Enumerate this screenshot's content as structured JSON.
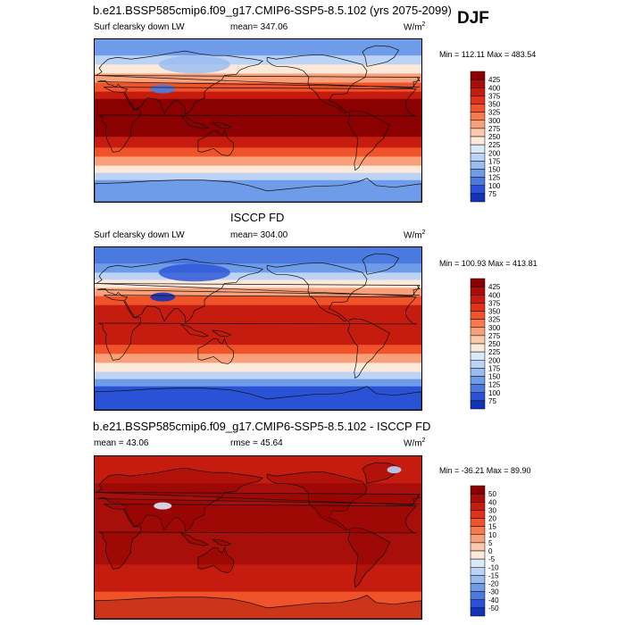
{
  "season": "DJF",
  "panels": [
    {
      "title": "b.e21.BSSP585cmip6.f09_g17.CMIP6-SSP5-8.5.102 (yrs 2075-2099)",
      "left_label": "Surf clearsky down LW",
      "center_label": "mean= 347.06",
      "units": "W/m",
      "units_sup": "2",
      "minmax": "Min = 112.11 Max = 483.54",
      "colorbar_ticks": [
        "425",
        "400",
        "375",
        "350",
        "325",
        "300",
        "275",
        "250",
        "225",
        "200",
        "175",
        "150",
        "125",
        "100",
        "75"
      ],
      "colors": [
        "#8b0000",
        "#a80f0a",
        "#c61c10",
        "#e03217",
        "#f0522a",
        "#f57a50",
        "#f8a07a",
        "#fbc8aa",
        "#fde9d9",
        "#dbe8f8",
        "#bcd3f5",
        "#98bbf0",
        "#6f9ce8",
        "#4a7ae0",
        "#2952d6",
        "#1233b8",
        "#001a8c"
      ],
      "map_type": "absolute"
    },
    {
      "title": "ISCCP FD",
      "left_label": "Surf clearsky down LW",
      "center_label": "mean= 304.00",
      "units": "W/m",
      "units_sup": "2",
      "minmax": "Min = 100.93 Max = 413.81",
      "colorbar_ticks": [
        "425",
        "400",
        "375",
        "350",
        "325",
        "300",
        "275",
        "250",
        "225",
        "200",
        "175",
        "150",
        "125",
        "100",
        "75"
      ],
      "colors": [
        "#8b0000",
        "#a80f0a",
        "#c61c10",
        "#e03217",
        "#f0522a",
        "#f57a50",
        "#f8a07a",
        "#fbc8aa",
        "#fde9d9",
        "#dbe8f8",
        "#bcd3f5",
        "#98bbf0",
        "#6f9ce8",
        "#4a7ae0",
        "#2952d6",
        "#1233b8",
        "#001a8c"
      ],
      "map_type": "absolute"
    },
    {
      "title": "b.e21.BSSP585cmip6.f09_g17.CMIP6-SSP5-8.5.102 - ISCCP FD",
      "left_label": "mean =  43.06",
      "center_label": "rmse =  45.64",
      "units": "W/m",
      "units_sup": "2",
      "minmax": "Min = -36.21 Max =  89.90",
      "colorbar_ticks": [
        "50",
        "40",
        "30",
        "20",
        "15",
        "10",
        "5",
        "0",
        "-5",
        "-10",
        "-15",
        "-20",
        "-30",
        "-40",
        "-50"
      ],
      "colors": [
        "#8b0000",
        "#a80f0a",
        "#c61c10",
        "#e03217",
        "#f0522a",
        "#f57a50",
        "#f8a07a",
        "#fbc8aa",
        "#fde9d9",
        "#dbe8f8",
        "#bcd3f5",
        "#98bbf0",
        "#6f9ce8",
        "#4a7ae0",
        "#2952d6",
        "#1233b8",
        "#001a8c"
      ],
      "map_type": "difference"
    }
  ],
  "chart_data": [
    {
      "type": "heatmap",
      "title": "b.e21.BSSP585cmip6.f09_g17.CMIP6-SSP5-8.5.102 (yrs 2075-2099)",
      "variable": "Surf clearsky down LW",
      "units": "W/m2",
      "season": "DJF",
      "mean": 347.06,
      "min": 112.11,
      "max": 483.54,
      "contour_levels": [
        75,
        100,
        125,
        150,
        175,
        200,
        225,
        250,
        275,
        300,
        325,
        350,
        375,
        400,
        425
      ]
    },
    {
      "type": "heatmap",
      "title": "ISCCP FD",
      "variable": "Surf clearsky down LW",
      "units": "W/m2",
      "season": "DJF",
      "mean": 304.0,
      "min": 100.93,
      "max": 413.81,
      "contour_levels": [
        75,
        100,
        125,
        150,
        175,
        200,
        225,
        250,
        275,
        300,
        325,
        350,
        375,
        400,
        425
      ]
    },
    {
      "type": "heatmap",
      "title": "b.e21.BSSP585cmip6.f09_g17.CMIP6-SSP5-8.5.102 - ISCCP FD",
      "units": "W/m2",
      "season": "DJF",
      "mean": 43.06,
      "rmse": 45.64,
      "min": -36.21,
      "max": 89.9,
      "contour_levels": [
        -50,
        -40,
        -30,
        -20,
        -15,
        -10,
        -5,
        0,
        5,
        10,
        15,
        20,
        30,
        40,
        50
      ]
    }
  ]
}
